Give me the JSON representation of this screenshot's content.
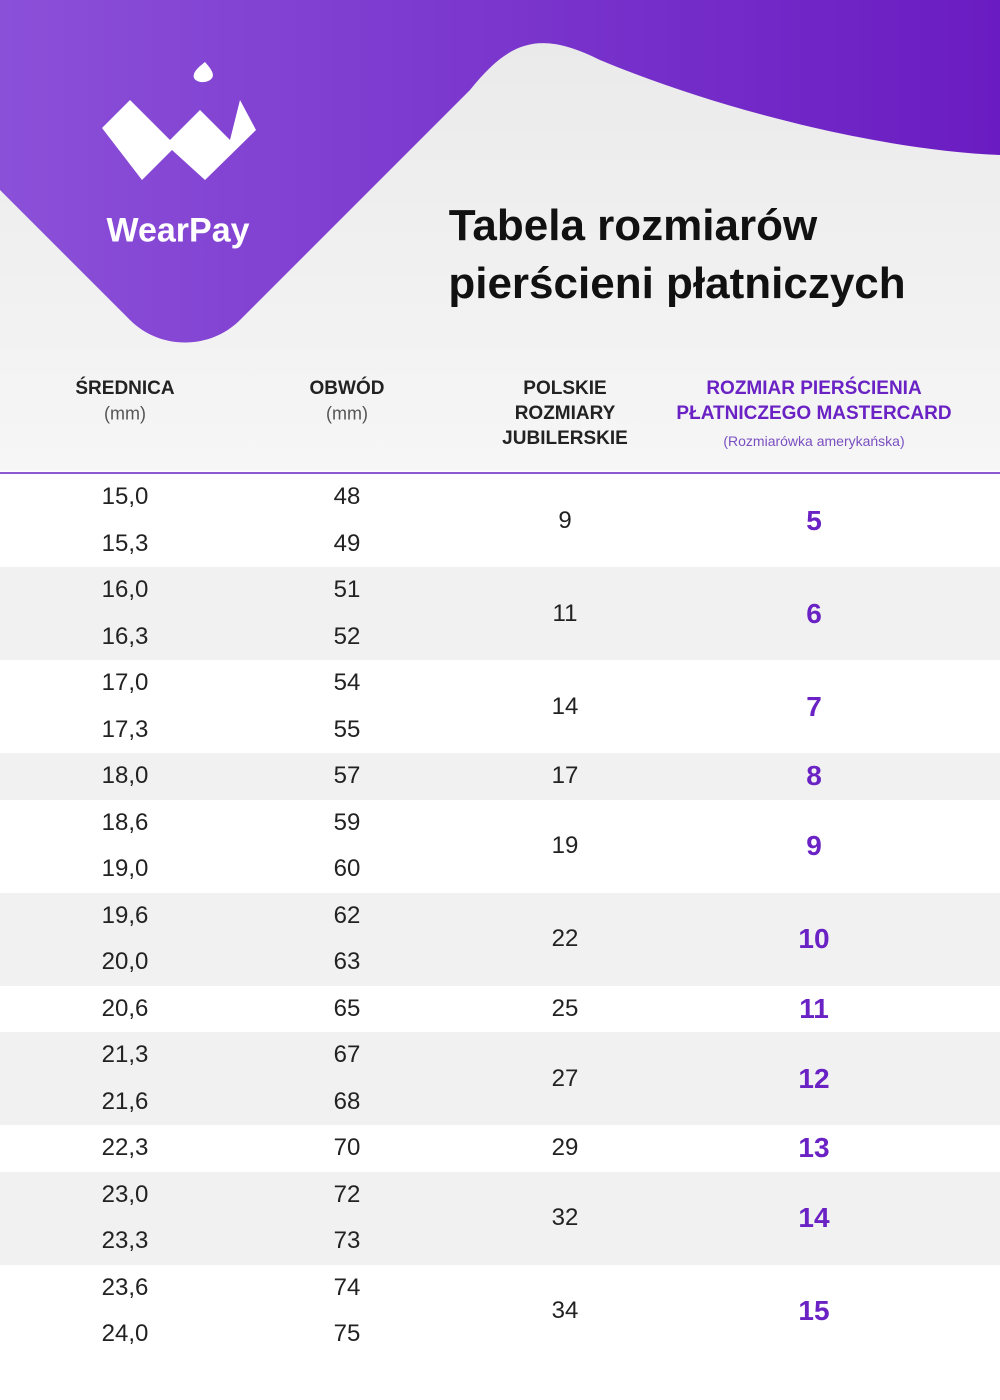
{
  "header": {
    "brand": "WearPay",
    "title": [
      "Tabela rozmiarów",
      "pierścieni płatniczych"
    ]
  },
  "table": {
    "columns": [
      {
        "label": [
          "ŚREDNICA"
        ],
        "unit": "(mm)"
      },
      {
        "label": [
          "OBWÓD"
        ],
        "unit": "(mm)"
      },
      {
        "label": [
          "POLSKIE",
          "ROZMIARY",
          "JUBILERSKIE"
        ]
      },
      {
        "label": [
          "ROZMIAR PIERŚCIENIA",
          "PŁATNICZEGO MASTERCARD"
        ],
        "unit": "(Rozmiarówka amerykańska)"
      }
    ],
    "groups": [
      {
        "rows": [
          [
            "15,0",
            "48"
          ],
          [
            "15,3",
            "49"
          ]
        ],
        "polish": "9",
        "mastercard": "5"
      },
      {
        "rows": [
          [
            "16,0",
            "51"
          ],
          [
            "16,3",
            "52"
          ]
        ],
        "polish": "11",
        "mastercard": "6"
      },
      {
        "rows": [
          [
            "17,0",
            "54"
          ],
          [
            "17,3",
            "55"
          ]
        ],
        "polish": "14",
        "mastercard": "7"
      },
      {
        "rows": [
          [
            "18,0",
            "57"
          ]
        ],
        "polish": "17",
        "mastercard": "8"
      },
      {
        "rows": [
          [
            "18,6",
            "59"
          ],
          [
            "19,0",
            "60"
          ]
        ],
        "polish": "19",
        "mastercard": "9"
      },
      {
        "rows": [
          [
            "19,6",
            "62"
          ],
          [
            "20,0",
            "63"
          ]
        ],
        "polish": "22",
        "mastercard": "10"
      },
      {
        "rows": [
          [
            "20,6",
            "65"
          ]
        ],
        "polish": "25",
        "mastercard": "11"
      },
      {
        "rows": [
          [
            "21,3",
            "67"
          ],
          [
            "21,6",
            "68"
          ]
        ],
        "polish": "27",
        "mastercard": "12"
      },
      {
        "rows": [
          [
            "22,3",
            "70"
          ]
        ],
        "polish": "29",
        "mastercard": "13"
      },
      {
        "rows": [
          [
            "23,0",
            "72"
          ],
          [
            "23,3",
            "73"
          ]
        ],
        "polish": "32",
        "mastercard": "14"
      },
      {
        "rows": [
          [
            "23,6",
            "74"
          ],
          [
            "24,0",
            "75"
          ]
        ],
        "polish": "34",
        "mastercard": "15"
      }
    ]
  }
}
